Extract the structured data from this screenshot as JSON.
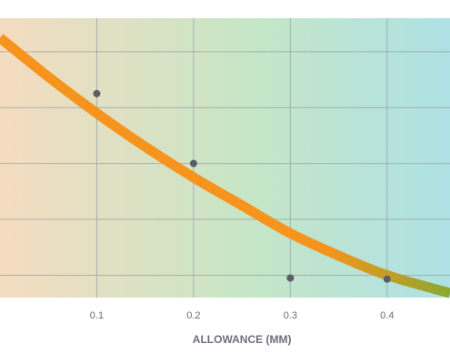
{
  "chart_data": {
    "type": "scatter",
    "x_tick_labels": [
      "0.1",
      "0.2",
      "0.3",
      "0.4"
    ],
    "x_ticks": [
      0.1,
      0.2,
      0.3,
      0.4
    ],
    "xlabel": "ALLOWANCE (MM)",
    "ylabel": "",
    "xlim": [
      0.0,
      0.465
    ],
    "ylim": [
      0,
      5
    ],
    "y_gridlines": [
      0.4,
      1.4,
      2.4,
      3.4,
      4.4
    ],
    "points": [
      {
        "x": 0.1,
        "y": 3.65
      },
      {
        "x": 0.2,
        "y": 2.4
      },
      {
        "x": 0.3,
        "y": 0.35
      },
      {
        "x": 0.4,
        "y": 0.33
      }
    ],
    "fit_curve": [
      {
        "x": 0.0,
        "y": 4.65
      },
      {
        "x": 0.05,
        "y": 3.95
      },
      {
        "x": 0.1,
        "y": 3.3
      },
      {
        "x": 0.15,
        "y": 2.7
      },
      {
        "x": 0.2,
        "y": 2.15
      },
      {
        "x": 0.25,
        "y": 1.65
      },
      {
        "x": 0.3,
        "y": 1.15
      },
      {
        "x": 0.35,
        "y": 0.75
      },
      {
        "x": 0.4,
        "y": 0.4
      },
      {
        "x": 0.465,
        "y": 0.08
      }
    ],
    "grid": true,
    "colors": {
      "background_left": "#f5dcc0",
      "background_mid": "#c6e6c6",
      "background_right": "#aee1e4",
      "curve_start": "#f7941d",
      "curve_end": "#8ba832",
      "point": "#5a5f66",
      "grid": "#9aa0a6",
      "tick_text": "#666d75",
      "axis_label": "#6a7078"
    }
  }
}
